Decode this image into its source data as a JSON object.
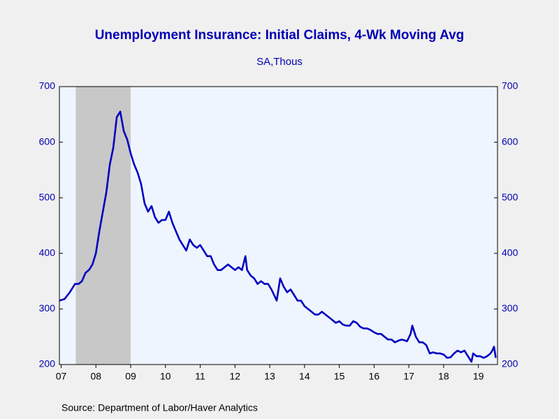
{
  "chart_data": {
    "type": "line",
    "title": "Unemployment Insurance: Initial Claims, 4-Wk Moving Avg",
    "subtitle": "SA,Thous",
    "source": "Source:  Department of Labor/Haver Analytics",
    "recession": [
      2007.92,
      2009.5
    ],
    "recession_color": "#c8c8c8",
    "plot_background": "#eef5fe",
    "xlim": [
      2007.45,
      2020.05
    ],
    "xticks": [
      {
        "value": 2007.5,
        "label": "07"
      },
      {
        "value": 2008.5,
        "label": "08"
      },
      {
        "value": 2009.5,
        "label": "09"
      },
      {
        "value": 2010.5,
        "label": "10"
      },
      {
        "value": 2011.5,
        "label": "11"
      },
      {
        "value": 2012.5,
        "label": "12"
      },
      {
        "value": 2013.5,
        "label": "13"
      },
      {
        "value": 2014.5,
        "label": "14"
      },
      {
        "value": 2015.5,
        "label": "15"
      },
      {
        "value": 2016.5,
        "label": "16"
      },
      {
        "value": 2017.5,
        "label": "17"
      },
      {
        "value": 2018.5,
        "label": "18"
      },
      {
        "value": 2019.5,
        "label": "19"
      }
    ],
    "ylim": [
      200,
      700
    ],
    "yticks": [
      200,
      300,
      400,
      500,
      600,
      700
    ],
    "y2lim": [
      200,
      700
    ],
    "y2ticks": [
      200,
      300,
      400,
      500,
      600,
      700
    ],
    "x": [
      2007.45,
      2007.6,
      2007.75,
      2007.9,
      2008.0,
      2008.1,
      2008.2,
      2008.3,
      2008.4,
      2008.5,
      2008.6,
      2008.7,
      2008.8,
      2008.9,
      2009.0,
      2009.1,
      2009.2,
      2009.3,
      2009.4,
      2009.5,
      2009.6,
      2009.7,
      2009.8,
      2009.9,
      2010.0,
      2010.1,
      2010.2,
      2010.3,
      2010.4,
      2010.5,
      2010.6,
      2010.7,
      2010.8,
      2010.9,
      2011.0,
      2011.1,
      2011.2,
      2011.3,
      2011.4,
      2011.5,
      2011.6,
      2011.7,
      2011.8,
      2011.9,
      2012.0,
      2012.1,
      2012.2,
      2012.3,
      2012.4,
      2012.5,
      2012.6,
      2012.7,
      2012.8,
      2012.85,
      2012.95,
      2013.05,
      2013.15,
      2013.25,
      2013.35,
      2013.45,
      2013.55,
      2013.7,
      2013.8,
      2013.9,
      2014.0,
      2014.1,
      2014.2,
      2014.3,
      2014.4,
      2014.5,
      2014.6,
      2014.7,
      2014.8,
      2014.9,
      2015.0,
      2015.1,
      2015.2,
      2015.3,
      2015.4,
      2015.5,
      2015.6,
      2015.7,
      2015.8,
      2015.9,
      2016.0,
      2016.1,
      2016.2,
      2016.3,
      2016.4,
      2016.5,
      2016.6,
      2016.7,
      2016.8,
      2016.9,
      2017.0,
      2017.1,
      2017.2,
      2017.3,
      2017.45,
      2017.55,
      2017.6,
      2017.7,
      2017.8,
      2017.9,
      2018.0,
      2018.1,
      2018.2,
      2018.3,
      2018.4,
      2018.5,
      2018.6,
      2018.7,
      2018.8,
      2018.9,
      2019.0,
      2019.1,
      2019.2,
      2019.3,
      2019.35,
      2019.45,
      2019.55,
      2019.65,
      2019.75,
      2019.85,
      2019.9,
      2019.95,
      2020.0
    ],
    "series": [
      {
        "name": "Initial Claims, 4-Wk Moving Avg",
        "color": "#0000c0",
        "values": [
          315,
          318,
          330,
          345,
          345,
          350,
          365,
          370,
          380,
          400,
          440,
          475,
          510,
          560,
          590,
          645,
          655,
          620,
          605,
          580,
          560,
          545,
          525,
          490,
          475,
          485,
          465,
          455,
          460,
          460,
          475,
          455,
          440,
          425,
          415,
          405,
          425,
          415,
          410,
          415,
          405,
          395,
          395,
          380,
          370,
          370,
          375,
          380,
          375,
          370,
          375,
          370,
          395,
          370,
          360,
          355,
          345,
          350,
          345,
          345,
          335,
          315,
          355,
          340,
          330,
          335,
          325,
          315,
          315,
          305,
          300,
          295,
          290,
          290,
          295,
          290,
          285,
          280,
          275,
          278,
          272,
          270,
          270,
          278,
          275,
          268,
          265,
          265,
          262,
          258,
          255,
          255,
          250,
          245,
          245,
          240,
          243,
          245,
          242,
          255,
          270,
          250,
          240,
          240,
          235,
          220,
          222,
          220,
          220,
          218,
          212,
          213,
          220,
          225,
          222,
          225,
          215,
          205,
          220,
          215,
          215,
          212,
          215,
          220,
          225,
          232,
          212
        ]
      }
    ]
  }
}
